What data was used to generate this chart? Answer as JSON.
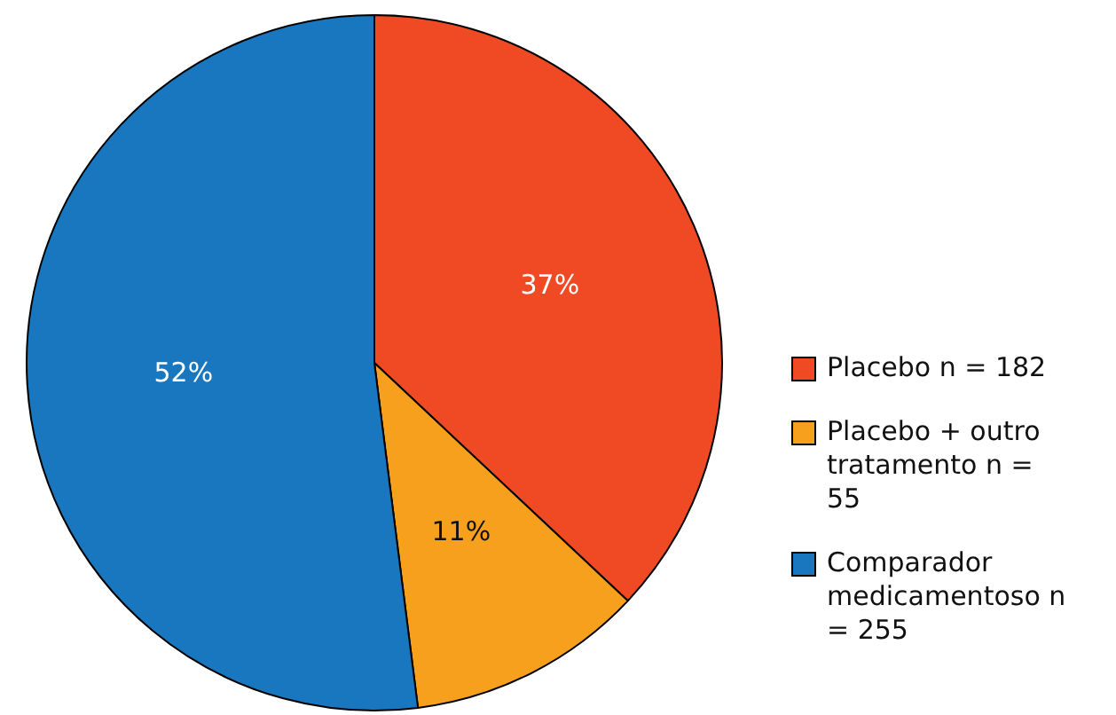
{
  "chart_data": {
    "type": "pie",
    "categories": [
      "Placebo n = 182",
      "Placebo + outro tratamento n = 55",
      "Comparador medicamentoso n = 255"
    ],
    "values": [
      37,
      11,
      52
    ],
    "colors": [
      "#f04a25",
      "#f7a01d",
      "#1877be"
    ],
    "value_labels": [
      "37%",
      "11%",
      "52%"
    ],
    "legend": "right"
  }
}
